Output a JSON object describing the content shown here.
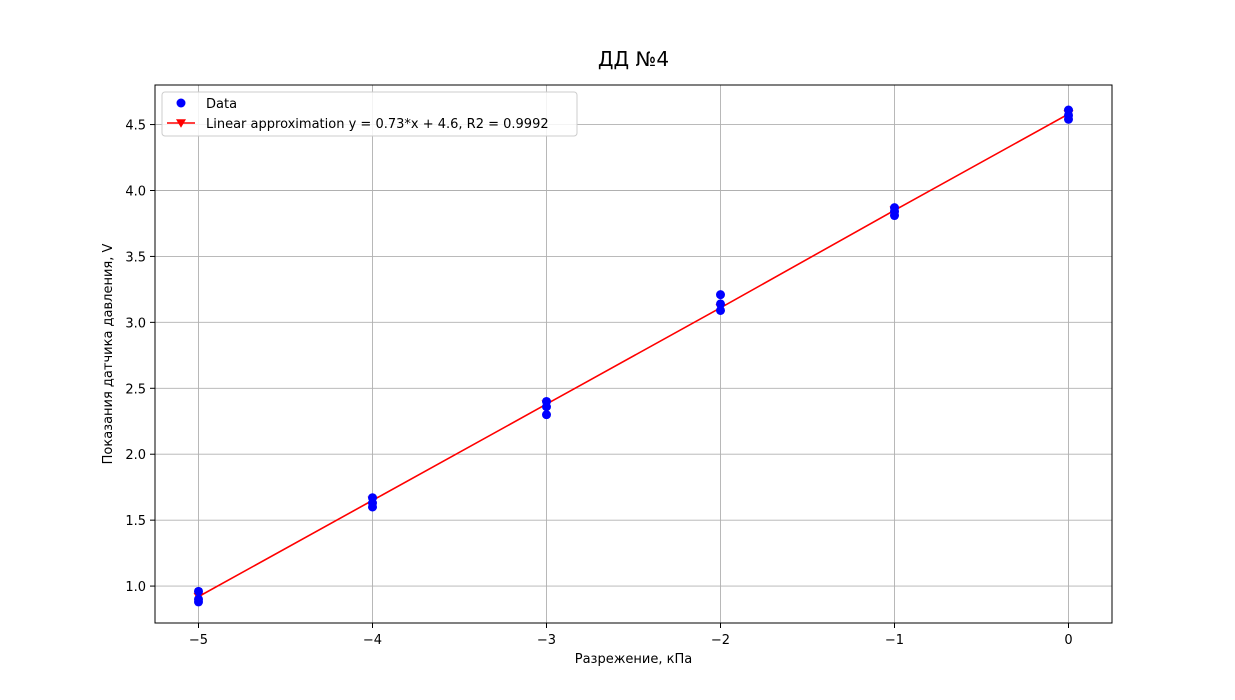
{
  "chart_data": {
    "type": "scatter",
    "title": "ДД №4",
    "xlabel": "Разрежение, кПа",
    "ylabel": "Показания датчика давления, V",
    "xlim": [
      -5.25,
      0.25
    ],
    "ylim": [
      0.72,
      4.8
    ],
    "grid": true,
    "legend_placement": "top-left",
    "xticks": [
      -5,
      -4,
      -3,
      -2,
      -1,
      0
    ],
    "xtick_labels": [
      "−5",
      "−4",
      "−3",
      "−2",
      "−1",
      "0"
    ],
    "yticks": [
      1.0,
      1.5,
      2.0,
      2.5,
      3.0,
      3.5,
      4.0,
      4.5
    ],
    "ytick_labels": [
      "1.0",
      "1.5",
      "2.0",
      "2.5",
      "3.0",
      "3.5",
      "4.0",
      "4.5"
    ],
    "series": [
      {
        "name": "Data",
        "kind": "scatter",
        "color": "#0000ff",
        "points": [
          {
            "x": -5,
            "y": 0.96
          },
          {
            "x": -5,
            "y": 0.9
          },
          {
            "x": -5,
            "y": 0.88
          },
          {
            "x": -4,
            "y": 1.67
          },
          {
            "x": -4,
            "y": 1.63
          },
          {
            "x": -4,
            "y": 1.6
          },
          {
            "x": -3,
            "y": 2.4
          },
          {
            "x": -3,
            "y": 2.36
          },
          {
            "x": -3,
            "y": 2.3
          },
          {
            "x": -2,
            "y": 3.21
          },
          {
            "x": -2,
            "y": 3.14
          },
          {
            "x": -2,
            "y": 3.09
          },
          {
            "x": -1,
            "y": 3.87
          },
          {
            "x": -1,
            "y": 3.84
          },
          {
            "x": -1,
            "y": 3.81
          },
          {
            "x": 0,
            "y": 4.61
          },
          {
            "x": 0,
            "y": 4.57
          },
          {
            "x": 0,
            "y": 4.54
          }
        ]
      },
      {
        "name": "Linear approximation y = 0.73*x + 4.6, R2 = 0.9992",
        "kind": "line",
        "marker": "triangle-down",
        "color": "#ff0000",
        "points": [
          {
            "x": -5,
            "y": 0.92
          },
          {
            "x": -4,
            "y": 1.65
          },
          {
            "x": -3,
            "y": 2.38
          },
          {
            "x": -2,
            "y": 3.11
          },
          {
            "x": -1,
            "y": 3.85
          },
          {
            "x": 0,
            "y": 4.58
          }
        ]
      }
    ]
  }
}
